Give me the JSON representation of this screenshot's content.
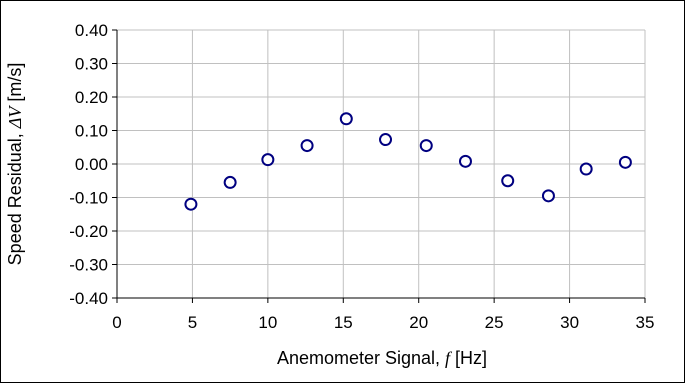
{
  "chart_data": {
    "type": "scatter",
    "title": "",
    "xlabel_prefix": "Anemometer Signal, ",
    "xlabel_symbol": "f",
    "xlabel_unit": " [Hz]",
    "ylabel_prefix": "Speed Residual, ",
    "ylabel_symbol": "ΔV",
    "ylabel_unit": " [m/s]",
    "xlim": [
      0,
      35
    ],
    "ylim": [
      -0.4,
      0.4
    ],
    "x_ticks": [
      0,
      5,
      10,
      15,
      20,
      25,
      30,
      35
    ],
    "x_tick_labels": [
      "0",
      "5",
      "10",
      "15",
      "20",
      "25",
      "30",
      "35"
    ],
    "y_ticks": [
      0.4,
      0.3,
      0.2,
      0.1,
      0.0,
      -0.1,
      -0.2,
      -0.3,
      -0.4
    ],
    "y_tick_labels": [
      "0.40",
      "0.30",
      "0.20",
      "0.10",
      "0.00",
      "-0.10",
      "-0.20",
      "-0.30",
      "-0.40"
    ],
    "grid": true,
    "legend": "none",
    "marker": "open-circle",
    "marker_color": "#000080",
    "grid_color": "#c0c0c0",
    "points": [
      {
        "x": 4.9,
        "y": -0.12
      },
      {
        "x": 7.5,
        "y": -0.055
      },
      {
        "x": 10.0,
        "y": 0.013
      },
      {
        "x": 12.6,
        "y": 0.055
      },
      {
        "x": 15.2,
        "y": 0.135
      },
      {
        "x": 17.8,
        "y": 0.073
      },
      {
        "x": 20.5,
        "y": 0.055
      },
      {
        "x": 23.1,
        "y": 0.008
      },
      {
        "x": 25.9,
        "y": -0.05
      },
      {
        "x": 28.6,
        "y": -0.095
      },
      {
        "x": 31.1,
        "y": -0.015
      },
      {
        "x": 33.7,
        "y": 0.005
      }
    ]
  }
}
